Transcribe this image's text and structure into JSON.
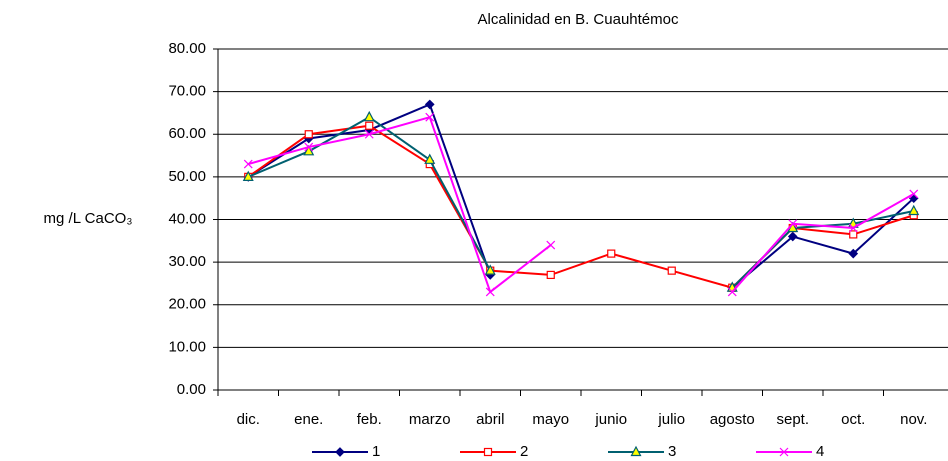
{
  "chart_data": {
    "type": "line",
    "title": "Alcalinidad en B. Cuauhtémoc",
    "y_label": "mg /L CaCO₃",
    "categories": [
      "dic.",
      "ene.",
      "feb.",
      "marzo",
      "abril",
      "mayo",
      "junio",
      "julio",
      "agosto",
      "sept.",
      "oct.",
      "nov."
    ],
    "series": [
      {
        "name": "1",
        "color": "#000080",
        "marker": "diamond",
        "values": [
          50,
          59,
          61,
          67,
          27,
          null,
          null,
          null,
          24,
          36,
          32,
          45
        ]
      },
      {
        "name": "2",
        "color": "#ff0000",
        "marker": "square",
        "values": [
          50,
          60,
          62,
          53,
          28,
          27,
          32,
          28,
          24,
          38,
          36.5,
          41
        ]
      },
      {
        "name": "3",
        "color": "#006070",
        "marker": "triangle",
        "values": [
          50,
          56,
          64,
          54,
          28,
          null,
          null,
          null,
          24,
          38,
          39,
          42
        ]
      },
      {
        "name": "4",
        "color": "#ff00ff",
        "marker": "x",
        "values": [
          53,
          57,
          60,
          64,
          23,
          34,
          null,
          null,
          23,
          39,
          38,
          46
        ]
      }
    ],
    "ylim": [
      0,
      80
    ],
    "yticks": [
      {
        "value": 0,
        "label": "0.00"
      },
      {
        "value": 10,
        "label": "10.00"
      },
      {
        "value": 20,
        "label": "20.00"
      },
      {
        "value": 30,
        "label": "30.00"
      },
      {
        "value": 40,
        "label": "40.00"
      },
      {
        "value": 50,
        "label": "50.00"
      },
      {
        "value": 60,
        "label": "60.00"
      },
      {
        "value": 70,
        "label": "70.00"
      },
      {
        "value": 80,
        "label": "80.00"
      }
    ],
    "grid": true,
    "legend": "bottom"
  }
}
